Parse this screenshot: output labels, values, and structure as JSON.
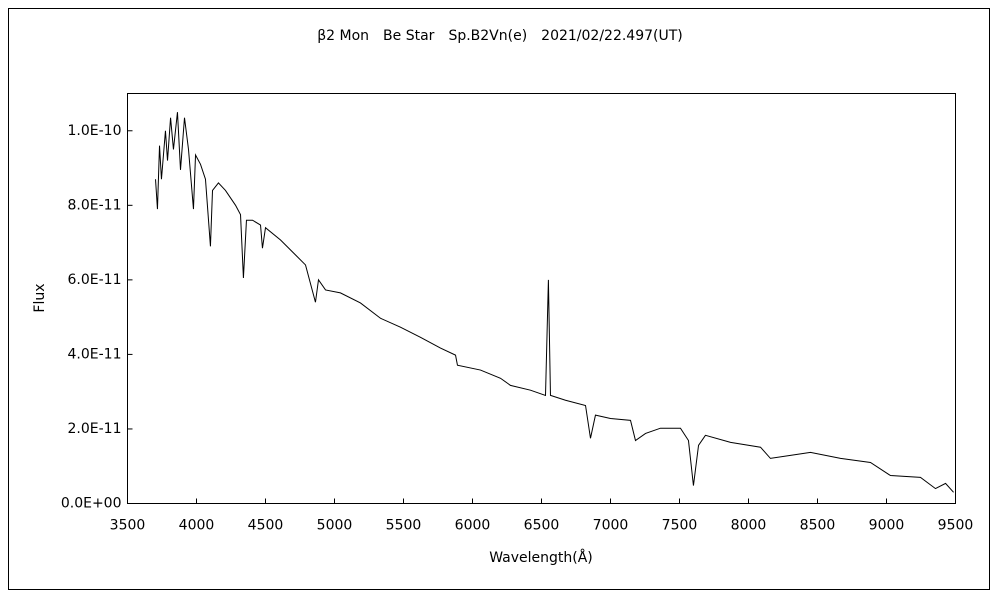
{
  "chart_data": {
    "type": "line",
    "title": "β2 Mon　Be Star　Sp.B2Vn(e)　2021/02/22.497(UT)",
    "x_label": "Wavelength(Å)",
    "y_label": "Flux",
    "xlim": [
      3500,
      9500
    ],
    "xticks": [
      3500,
      4000,
      4500,
      5000,
      5500,
      6000,
      6500,
      7000,
      7500,
      8000,
      8500,
      9000,
      9500
    ],
    "ylim": [
      0,
      1.1e-10
    ],
    "yticks": [
      {
        "value": 0,
        "label": "0.0E+00"
      },
      {
        "value": 2e-11,
        "label": "2.0E-11"
      },
      {
        "value": 4e-11,
        "label": "4.0E-11"
      },
      {
        "value": 6e-11,
        "label": "6.0E-11"
      },
      {
        "value": 8e-11,
        "label": "8.0E-11"
      },
      {
        "value": 1e-10,
        "label": "1.0E-10"
      }
    ],
    "grid": false,
    "series": [
      {
        "color": "#000000",
        "x": [
          3703,
          3717,
          3732,
          3746,
          3775,
          3790,
          3812,
          3833,
          3862,
          3884,
          3913,
          3942,
          3978,
          3993,
          4029,
          4065,
          4101,
          4116,
          4159,
          4210,
          4283,
          4319,
          4340,
          4362,
          4406,
          4464,
          4478,
          4500,
          4609,
          4717,
          4790,
          4862,
          4884,
          4935,
          5043,
          5188,
          5333,
          5478,
          5623,
          5768,
          5877,
          5891,
          6058,
          6203,
          6275,
          6420,
          6529,
          6550,
          6565,
          6674,
          6819,
          6855,
          6891,
          7000,
          7145,
          7181,
          7254,
          7362,
          7507,
          7565,
          7601,
          7638,
          7688,
          7870,
          8087,
          8159,
          8304,
          8449,
          8667,
          8884,
          9029,
          9246,
          9355,
          9428,
          9486
        ],
        "values": [
          8.7e-11,
          7.9e-11,
          9.6e-11,
          8.7e-11,
          1e-10,
          9.2e-11,
          1.035e-10,
          9.5e-11,
          1.05e-10,
          8.95e-11,
          1.035e-10,
          9.5e-11,
          7.9e-11,
          9.35e-11,
          9.1e-11,
          8.7e-11,
          6.9e-11,
          8.4e-11,
          8.6e-11,
          8.4e-11,
          8e-11,
          7.75e-11,
          6.05e-11,
          7.6e-11,
          7.6e-11,
          7.47e-11,
          6.85e-11,
          7.4e-11,
          7.07e-11,
          6.67e-11,
          6.4e-11,
          5.4e-11,
          6e-11,
          5.73e-11,
          5.65e-11,
          5.38e-11,
          4.97e-11,
          4.73e-11,
          4.46e-11,
          4.17e-11,
          3.98e-11,
          3.71e-11,
          3.58e-11,
          3.36e-11,
          3.17e-11,
          3.04e-11,
          2.9e-11,
          6e-11,
          2.9e-11,
          2.77e-11,
          2.63e-11,
          1.75e-11,
          2.37e-11,
          2.28e-11,
          2.23e-11,
          1.69e-11,
          1.88e-11,
          2.02e-11,
          2.02e-11,
          1.69e-11,
          4.8e-12,
          1.56e-11,
          1.83e-11,
          1.64e-11,
          1.51e-11,
          1.21e-11,
          1.29e-11,
          1.37e-11,
          1.21e-11,
          1.1e-11,
          7.5e-12,
          7e-12,
          4e-12,
          5.4e-12,
          3e-12
        ]
      }
    ]
  }
}
